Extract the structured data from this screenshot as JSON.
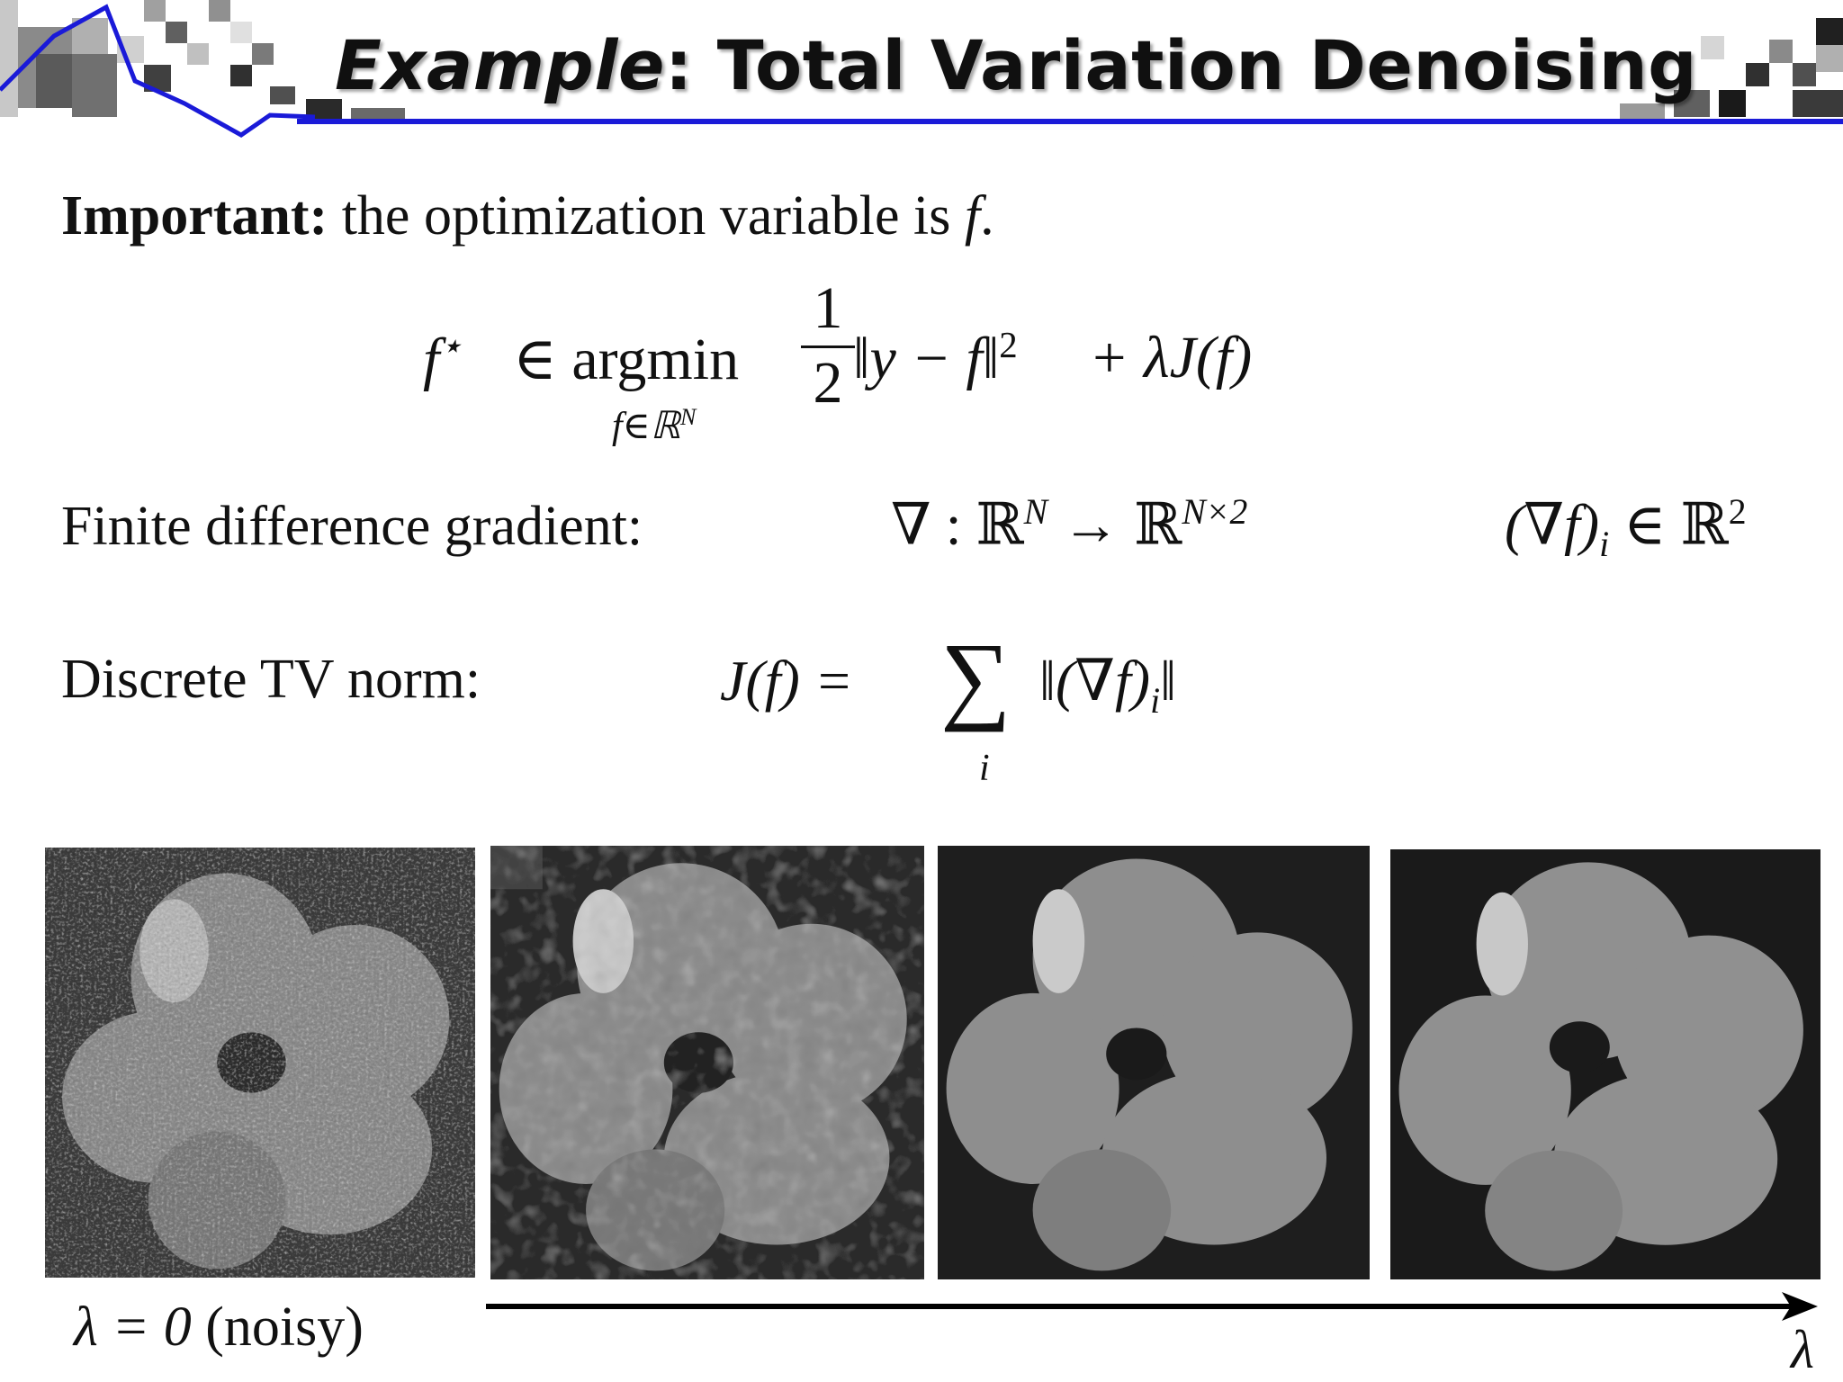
{
  "title": {
    "emphasis": "Example",
    "rest": ": Total Variation Denoising"
  },
  "important": {
    "bold": "Important:",
    "text": " the optimization variable is ",
    "var": "f",
    "end": "."
  },
  "formula": {
    "lhs": "f",
    "lhs_sup": "⋆",
    "op": "∈ argmin",
    "sub": "f∈ℝ",
    "sub_sup": "N",
    "frac_num": "1",
    "frac_den": "2",
    "norm": "‖y − f‖",
    "norm_sup": "2",
    "reg": "+ λJ(f)"
  },
  "gradient": {
    "label": "Finite difference gradient:",
    "map_pre": "∇ : ℝ",
    "map_sup1": "N",
    "map_arrow": " → ℝ",
    "map_sup2": "N×2",
    "comp_pre": "(∇f)",
    "comp_sub": "i",
    "comp_in": " ∈ ℝ",
    "comp_sup": "2"
  },
  "tv": {
    "label": "Discrete TV norm:",
    "lhs": "J(f) =",
    "sum": "∑",
    "sum_index": "i",
    "term_pre": "‖(∇f)",
    "term_sub": "i",
    "term_post": "‖"
  },
  "panels": {
    "noisy_label_pre": "λ = 0 ",
    "noisy_label_paren": "(noisy)",
    "axis_label": "λ"
  },
  "colors": {
    "accent_blue": "#1a1ad8",
    "text": "#111111"
  }
}
